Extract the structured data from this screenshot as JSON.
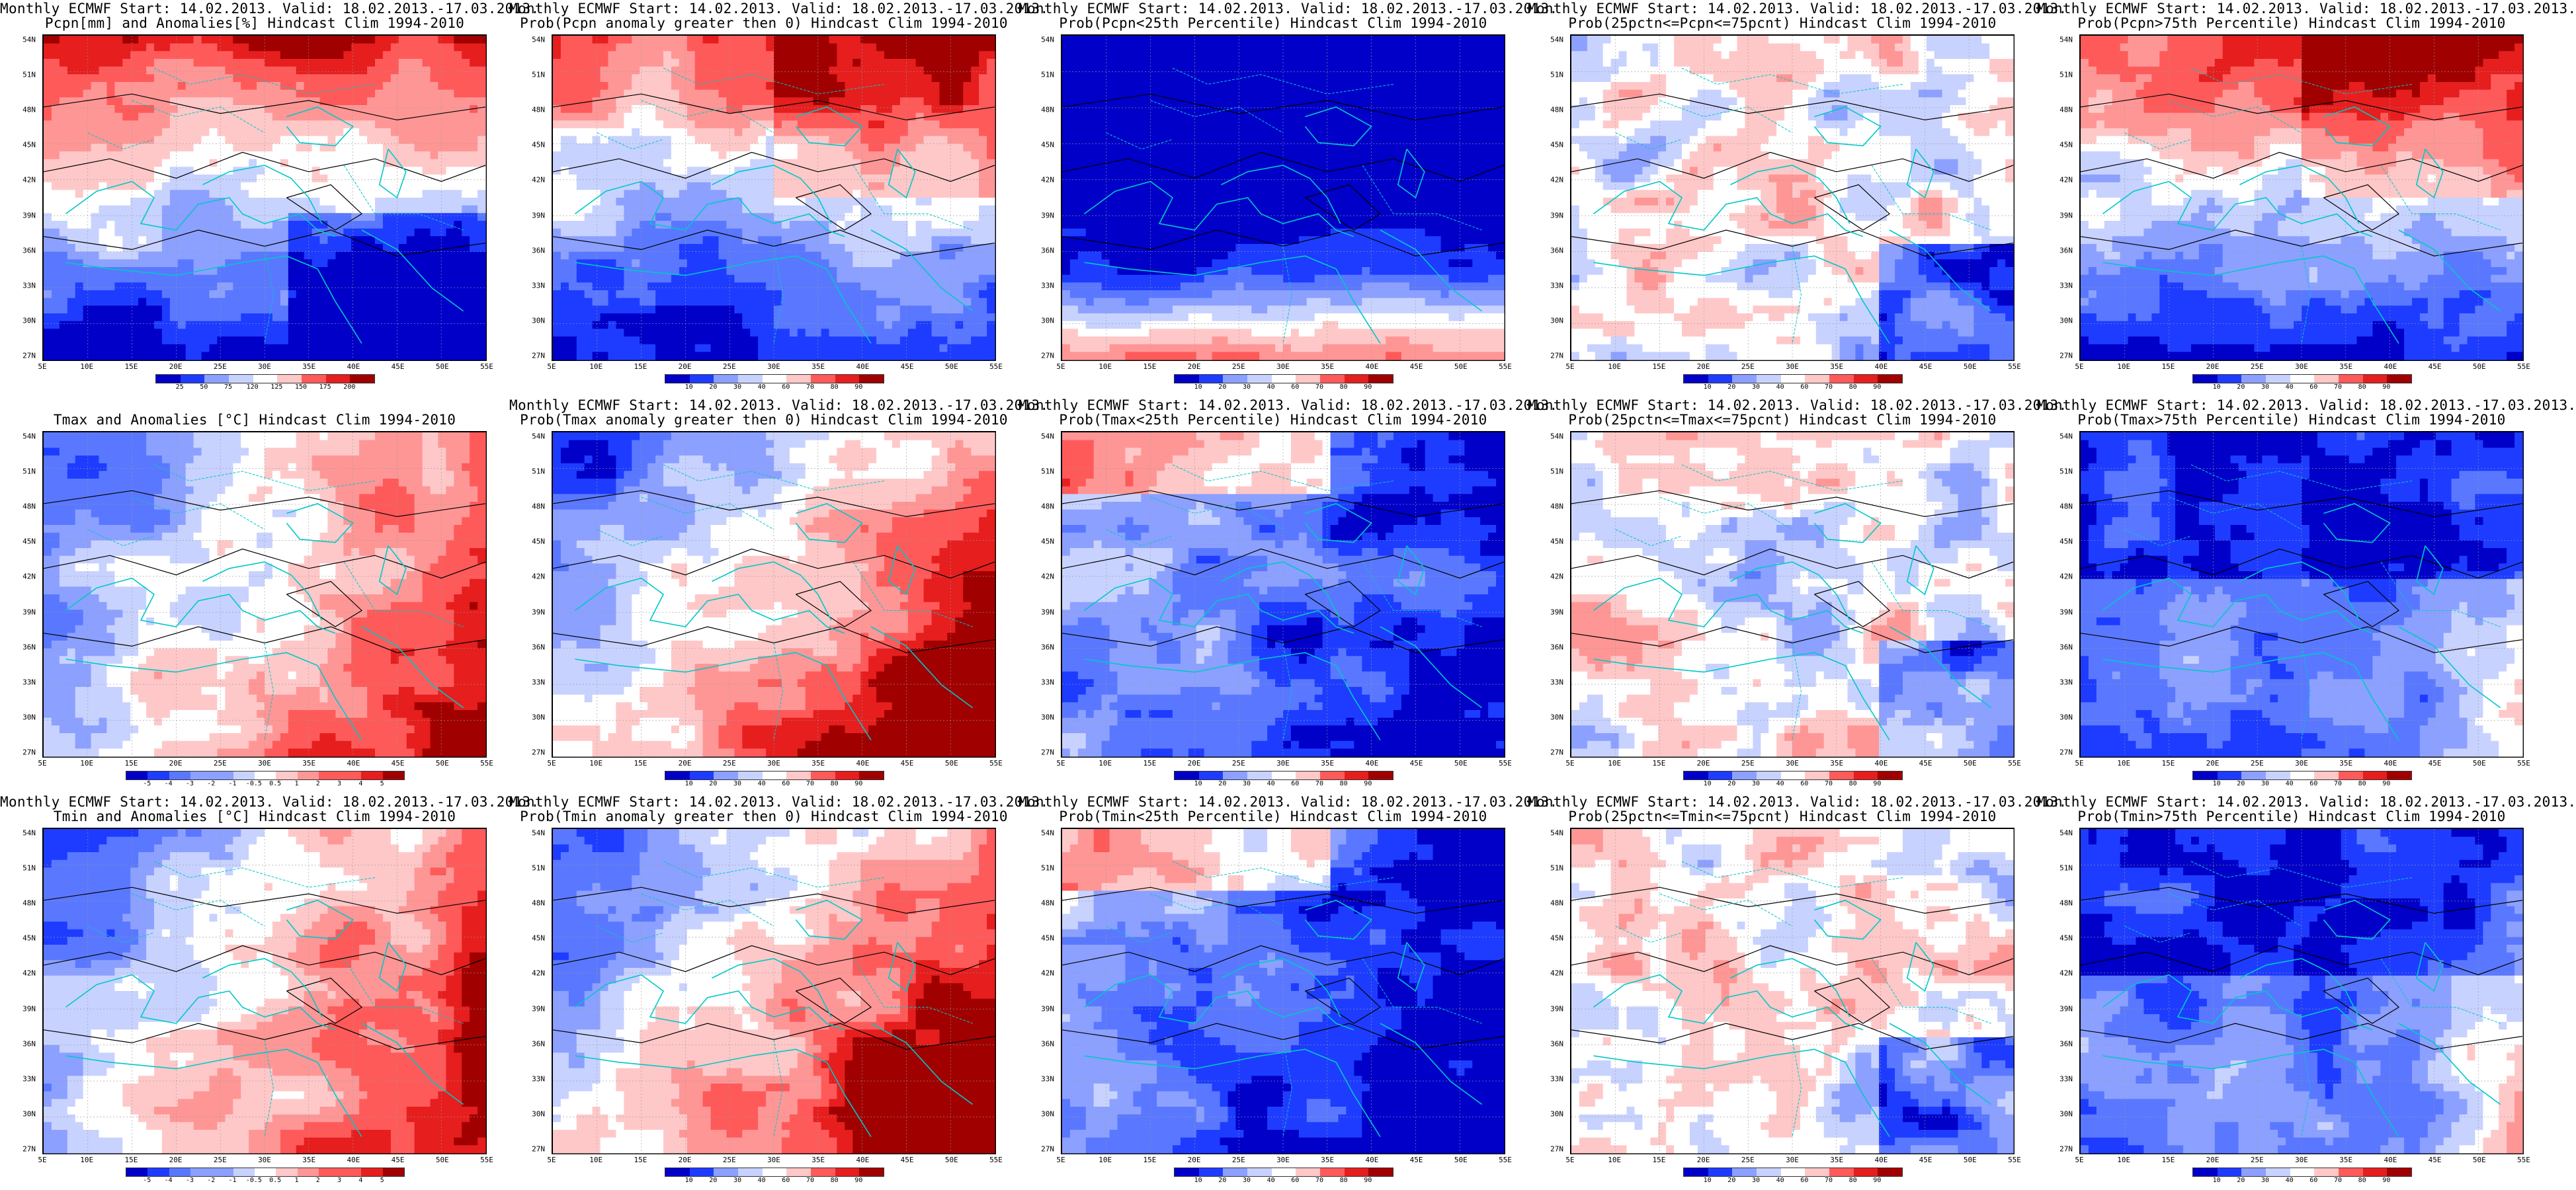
{
  "panels": [
    {
      "title1": "Monthly ECMWF Start: 14.02.2013. Valid: 18.02.2013.-17.03.2013.",
      "title2": "Pcpn[mm] and Anomalies[%] Hindcast Clim 1994-2010",
      "scheme": "precip-anom",
      "legend": [
        "25",
        "50",
        "75",
        "120",
        "125",
        "150",
        "175",
        "200"
      ]
    },
    {
      "title1": "Monthly ECMWF Start: 14.02.2013. Valid: 18.02.2013.-17.03.2013.",
      "title2": "Prob(Pcpn anomaly greater then 0) Hindcast Clim 1994-2010",
      "scheme": "prob-dry",
      "legend": [
        "10",
        "20",
        "30",
        "40",
        "60",
        "70",
        "80",
        "90"
      ]
    },
    {
      "title1": "Monthly ECMWF Start: 14.02.2013. Valid: 18.02.2013.-17.03.2013.",
      "title2": "Prob(Pcpn<25th Percentile) Hindcast Clim 1994-2010",
      "scheme": "prob-low",
      "legend": [
        "10",
        "20",
        "30",
        "40",
        "60",
        "70",
        "80",
        "90"
      ]
    },
    {
      "title1": "Monthly ECMWF Start: 14.02.2013. Valid: 18.02.2013.-17.03.2013.",
      "title2": "Prob(25pctn<=Pcpn<=75pcnt) Hindcast Clim 1994-2010",
      "scheme": "prob-mid",
      "legend": [
        "10",
        "20",
        "30",
        "40",
        "60",
        "70",
        "80",
        "90"
      ]
    },
    {
      "title1": "Monthly ECMWF Start: 14.02.2013. Valid: 18.02.2013.-17.03.2013.",
      "title2": "Prob(Pcpn>75th Percentile) Hindcast Clim 1994-2010",
      "scheme": "prob-dry",
      "legend": [
        "10",
        "20",
        "30",
        "40",
        "60",
        "70",
        "80",
        "90"
      ]
    },
    {
      "title1": "",
      "title2": "Tmax and Anomalies [°C] Hindcast Clim 1994-2010",
      "scheme": "temp-anom",
      "legend": [
        "-5",
        "-4",
        "-3",
        "-2",
        "-1",
        "-0.5",
        "0.5",
        "1",
        "2",
        "3",
        "4",
        "5"
      ]
    },
    {
      "title1": "Monthly ECMWF Start: 14.02.2013. Valid: 18.02.2013.-17.03.2013.",
      "title2": "Prob(Tmax anomaly greater then 0) Hindcast Clim 1994-2010",
      "scheme": "temp-prob",
      "legend": [
        "10",
        "20",
        "30",
        "40",
        "60",
        "70",
        "80",
        "90"
      ]
    },
    {
      "title1": "Monthly ECMWF Start: 14.02.2013. Valid: 18.02.2013.-17.03.2013.",
      "title2": "Prob(Tmax<25th Percentile) Hindcast Clim 1994-2010",
      "scheme": "cold-prob",
      "legend": [
        "10",
        "20",
        "30",
        "40",
        "60",
        "70",
        "80",
        "90"
      ]
    },
    {
      "title1": "Monthly ECMWF Start: 14.02.2013. Valid: 18.02.2013.-17.03.2013.",
      "title2": "Prob(25pctn<=Tmax<=75pcnt) Hindcast Clim 1994-2010",
      "scheme": "prob-mid",
      "legend": [
        "10",
        "20",
        "30",
        "40",
        "60",
        "70",
        "80",
        "90"
      ]
    },
    {
      "title1": "Monthly ECMWF Start: 14.02.2013. Valid: 18.02.2013.-17.03.2013.",
      "title2": "Prob(Tmax>75th Percentile) Hindcast Clim 1994-2010",
      "scheme": "warm-prob",
      "legend": [
        "10",
        "20",
        "30",
        "40",
        "60",
        "70",
        "80",
        "90"
      ]
    },
    {
      "title1": "Monthly ECMWF Start: 14.02.2013. Valid: 18.02.2013.-17.03.2013.",
      "title2": "Tmin and Anomalies [°C] Hindcast Clim 1994-2010",
      "scheme": "temp-anom",
      "legend": [
        "-5",
        "-4",
        "-3",
        "-2",
        "-1",
        "-0.5",
        "0.5",
        "1",
        "2",
        "3",
        "4",
        "5"
      ]
    },
    {
      "title1": "Monthly ECMWF Start: 14.02.2013. Valid: 18.02.2013.-17.03.2013.",
      "title2": "Prob(Tmin anomaly greater then 0) Hindcast Clim 1994-2010",
      "scheme": "temp-prob",
      "legend": [
        "10",
        "20",
        "30",
        "40",
        "60",
        "70",
        "80",
        "90"
      ]
    },
    {
      "title1": "Monthly ECMWF Start: 14.02.2013. Valid: 18.02.2013.-17.03.2013.",
      "title2": "Prob(Tmin<25th Percentile) Hindcast Clim 1994-2010",
      "scheme": "cold-prob",
      "legend": [
        "10",
        "20",
        "30",
        "40",
        "60",
        "70",
        "80",
        "90"
      ]
    },
    {
      "title1": "Monthly ECMWF Start: 14.02.2013. Valid: 18.02.2013.-17.03.2013.",
      "title2": "Prob(25pctn<=Tmin<=75pcnt) Hindcast Clim 1994-2010",
      "scheme": "prob-mid",
      "legend": [
        "10",
        "20",
        "30",
        "40",
        "60",
        "70",
        "80",
        "90"
      ]
    },
    {
      "title1": "Monthly ECMWF Start: 14.02.2013. Valid: 18.02.2013.-17.03.2013.",
      "title2": "Prob(Tmin>75th Percentile) Hindcast Clim 1994-2010",
      "scheme": "warm-prob",
      "legend": [
        "10",
        "20",
        "30",
        "40",
        "60",
        "70",
        "80",
        "90"
      ]
    }
  ],
  "x_ticks": [
    "5E",
    "10E",
    "15E",
    "20E",
    "25E",
    "30E",
    "35E",
    "40E",
    "45E",
    "50E",
    "55E"
  ],
  "y_ticks": [
    "54N",
    "51N",
    "48N",
    "45N",
    "42N",
    "39N",
    "36N",
    "33N",
    "30N",
    "27N"
  ],
  "colors": {
    "blues": [
      "#0000c8",
      "#1e3cff",
      "#5a78ff",
      "#8ca0ff",
      "#c8d2ff"
    ],
    "reds": [
      "#ffc8c8",
      "#ff9696",
      "#ff5a5a",
      "#e61e1e",
      "#a00000"
    ],
    "white": "#ffffff",
    "coast": "#00c8c8",
    "contour": "#000000"
  }
}
